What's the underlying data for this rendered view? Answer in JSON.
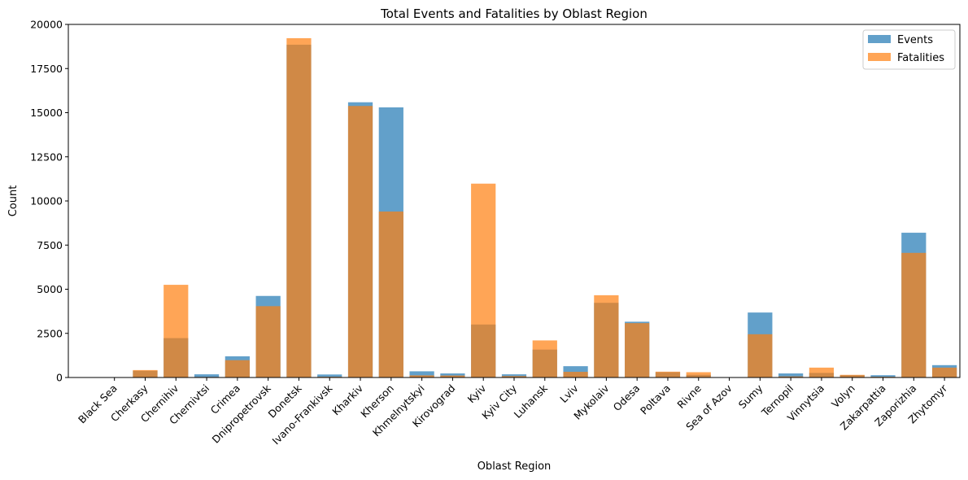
{
  "chart_data": {
    "type": "bar",
    "title": "Total Events and Fatalities by Oblast Region",
    "xlabel": "Oblast Region",
    "ylabel": "Count",
    "ylim": [
      0,
      20000
    ],
    "yticks": [
      0,
      2500,
      5000,
      7500,
      10000,
      12500,
      15000,
      17500,
      20000
    ],
    "grid": false,
    "legend_position": "top-right",
    "categories": [
      "Black Sea",
      "Cherkasy",
      "Chernihiv",
      "Chernivtsi",
      "Crimea",
      "Dnipropetrovsk",
      "Donetsk",
      "Ivano-Frankivsk",
      "Kharkiv",
      "Kherson",
      "Khmelnytskyi",
      "Kirovograd",
      "Kyiv",
      "Kyiv City",
      "Luhansk",
      "Lviv",
      "Mykolaiv",
      "Odesa",
      "Poltava",
      "Rivne",
      "Sea of Azov",
      "Sumy",
      "Ternopil",
      "Vinnytsia",
      "Volyn",
      "Zakarpattia",
      "Zaporizhia",
      "Zhytomyr"
    ],
    "series": [
      {
        "name": "Events",
        "color": "#1f77b4",
        "values": [
          10,
          380,
          2230,
          180,
          1200,
          4620,
          18850,
          170,
          15590,
          15300,
          350,
          230,
          3000,
          180,
          1580,
          640,
          4230,
          3160,
          300,
          150,
          10,
          3680,
          230,
          260,
          130,
          130,
          8200,
          700
        ]
      },
      {
        "name": "Fatalities",
        "color": "#ff7f0e",
        "values": [
          5,
          420,
          5250,
          30,
          980,
          4040,
          19220,
          40,
          15380,
          9400,
          120,
          110,
          10980,
          80,
          2100,
          320,
          4660,
          3080,
          330,
          300,
          5,
          2450,
          60,
          560,
          150,
          40,
          7060,
          560
        ]
      }
    ]
  }
}
